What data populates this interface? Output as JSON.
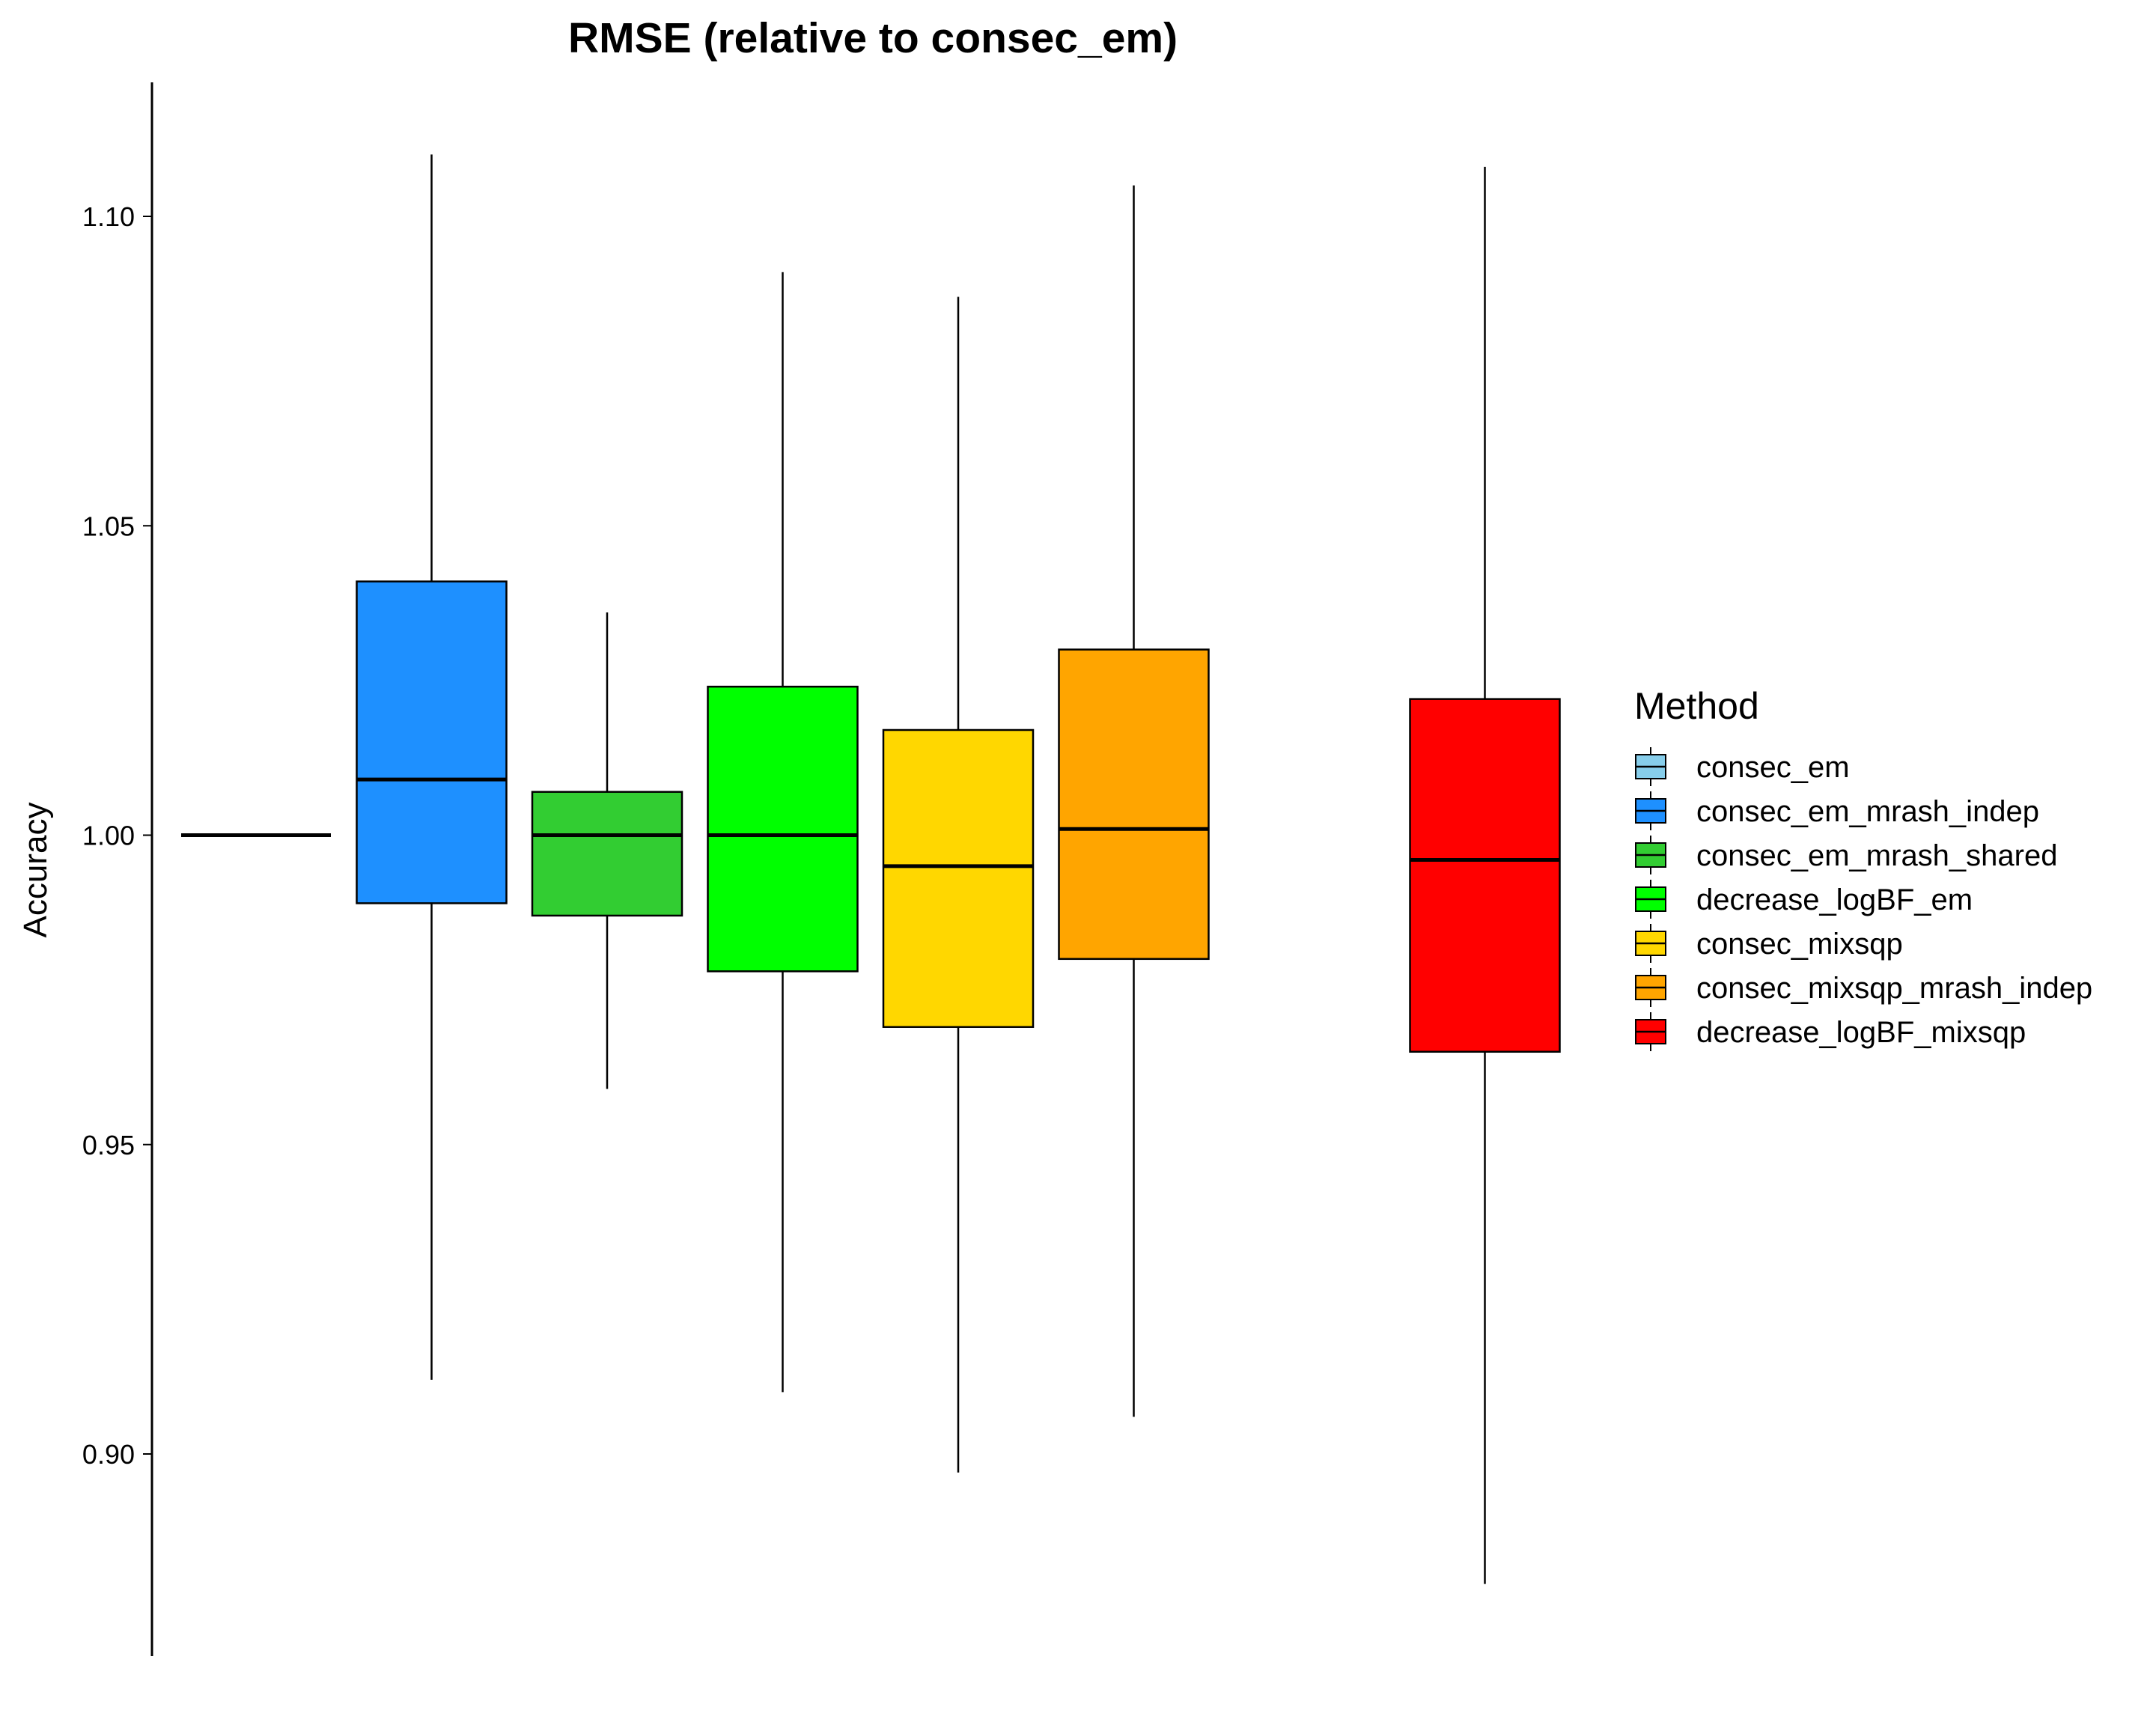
{
  "chart_data": {
    "type": "boxplot",
    "title": "RMSE (relative to consec_em)",
    "xlabel": "",
    "ylabel": "Accuracy",
    "ylim": [
      0.868,
      1.121
    ],
    "yticks": [
      0.9,
      0.95,
      1.0,
      1.05,
      1.1
    ],
    "ytick_labels": [
      "0.90",
      "0.95",
      "1.00",
      "1.05",
      "1.10"
    ],
    "grid": false,
    "legend_title": "Method",
    "legend_position": "right",
    "series": [
      {
        "name": "consec_em",
        "color": "#87ceeb",
        "min": 1.0,
        "q1": 1.0,
        "median": 1.0,
        "q3": 1.0,
        "max": 1.0,
        "slot": 0
      },
      {
        "name": "consec_em_mrash_indep",
        "color": "#1e90ff",
        "min": 0.912,
        "q1": 0.989,
        "median": 1.009,
        "q3": 1.041,
        "max": 1.11,
        "slot": 1
      },
      {
        "name": "consec_em_mrash_shared",
        "color": "#32cd32",
        "min": 0.959,
        "q1": 0.987,
        "median": 1.0,
        "q3": 1.007,
        "max": 1.036,
        "slot": 2
      },
      {
        "name": "decrease_logBF_em",
        "color": "#00ff00",
        "min": 0.91,
        "q1": 0.978,
        "median": 1.0,
        "q3": 1.024,
        "max": 1.091,
        "slot": 3
      },
      {
        "name": "consec_mixsqp",
        "color": "#ffd700",
        "min": 0.897,
        "q1": 0.969,
        "median": 0.995,
        "q3": 1.017,
        "max": 1.087,
        "slot": 4
      },
      {
        "name": "consec_mixsqp_mrash_indep",
        "color": "#ffa500",
        "min": 0.906,
        "q1": 0.98,
        "median": 1.001,
        "q3": 1.03,
        "max": 1.105,
        "slot": 5
      },
      {
        "name": "decrease_logBF_mixsqp",
        "color": "#ff0000",
        "min": 0.879,
        "q1": 0.965,
        "median": 0.996,
        "q3": 1.022,
        "max": 1.108,
        "slot": 7
      }
    ]
  }
}
